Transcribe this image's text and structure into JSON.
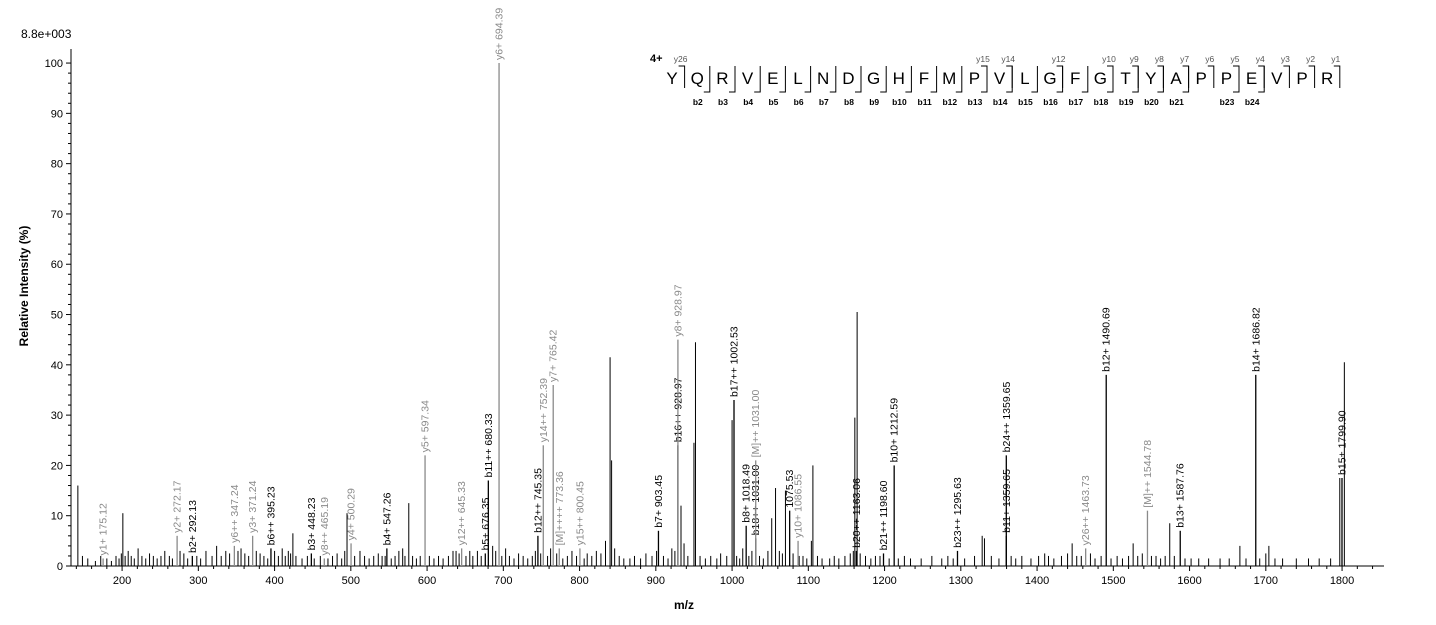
{
  "chart_data": {
    "type": "bar",
    "max_intensity_label": "8.8e+003",
    "xlabel": "m/z",
    "ylabel": "Relative   Intensity (%)",
    "xlim": [
      133,
      1855
    ],
    "ylim": [
      0,
      102
    ],
    "x_ticks": [
      200,
      300,
      400,
      500,
      600,
      700,
      800,
      900,
      1000,
      1100,
      1200,
      1300,
      1400,
      1500,
      1600,
      1700,
      1800
    ],
    "y_ticks": [
      0,
      10,
      20,
      30,
      40,
      50,
      60,
      70,
      80,
      90,
      100
    ],
    "annotated_peaks": [
      {
        "mz": 175.12,
        "intensity": 1.5,
        "ion": "y",
        "label": "y1+ 175.12"
      },
      {
        "mz": 272.17,
        "intensity": 6,
        "ion": "y",
        "label": "y2+ 272.17"
      },
      {
        "mz": 292.13,
        "intensity": 2,
        "ion": "b",
        "label": "b2+ 292.13"
      },
      {
        "mz": 347.24,
        "intensity": 4,
        "ion": "y",
        "label": "y6++ 347.24"
      },
      {
        "mz": 371.24,
        "intensity": 6,
        "ion": "y",
        "label": "y3+ 371.24"
      },
      {
        "mz": 395.23,
        "intensity": 3.5,
        "ion": "b",
        "label": "b6++ 395.23"
      },
      {
        "mz": 448.23,
        "intensity": 2.5,
        "ion": "b",
        "label": "b3+ 448.23"
      },
      {
        "mz": 465.19,
        "intensity": 1.5,
        "ion": "y",
        "label": "y8++ 465.19"
      },
      {
        "mz": 500.29,
        "intensity": 4.5,
        "ion": "y",
        "label": "y4+ 500.29"
      },
      {
        "mz": 547.26,
        "intensity": 3.5,
        "ion": "b",
        "label": "b4+ 547.26"
      },
      {
        "mz": 597.34,
        "intensity": 22,
        "ion": "y",
        "label": "y5+ 597.34"
      },
      {
        "mz": 645.33,
        "intensity": 3.5,
        "ion": "y",
        "label": "y12++ 645.33"
      },
      {
        "mz": 676.35,
        "intensity": 2.5,
        "ion": "b",
        "label": "b5+ 676.35"
      },
      {
        "mz": 680.33,
        "intensity": 17,
        "ion": "b",
        "label": "b11++ 680.33"
      },
      {
        "mz": 694.39,
        "intensity": 100,
        "ion": "y",
        "label": "y6+ 694.39"
      },
      {
        "mz": 745.35,
        "intensity": 6,
        "ion": "b",
        "label": "b12++ 745.35"
      },
      {
        "mz": 752.39,
        "intensity": 24,
        "ion": "y",
        "label": "y14++ 752.39"
      },
      {
        "mz": 765.42,
        "intensity": 36,
        "ion": "y",
        "label": "y7+ 765.42"
      },
      {
        "mz": 773.36,
        "intensity": 3.5,
        "ion": "y",
        "label": "[M]++++ 773.36"
      },
      {
        "mz": 800.45,
        "intensity": 3.5,
        "ion": "y",
        "label": "y15++ 800.45"
      },
      {
        "mz": 903.45,
        "intensity": 7,
        "ion": "b",
        "label": "b7+ 903.45"
      },
      {
        "mz": 928.97,
        "intensity": 24,
        "ion": "b",
        "label": "b16++ 928.97"
      },
      {
        "mz": 928.97,
        "intensity": 45,
        "ion": "y",
        "label": "y8+ 928.97"
      },
      {
        "mz": 1002.53,
        "intensity": 33,
        "ion": "b",
        "label": "b17++ 1002.53"
      },
      {
        "mz": 1018.49,
        "intensity": 8,
        "ion": "b",
        "label": "b8+ 1018.49"
      },
      {
        "mz": 1031.0,
        "intensity": 5.5,
        "ion": "b",
        "label": "b18++ 1031.00"
      },
      {
        "mz": 1031.0,
        "intensity": 21,
        "ion": "y",
        "label": "[M]++ 1031.00"
      },
      {
        "mz": 1075.53,
        "intensity": 11,
        "ion": "b",
        "label": "1075.53"
      },
      {
        "mz": 1086.55,
        "intensity": 5,
        "ion": "y",
        "label": "y10+ 1086.55"
      },
      {
        "mz": 1163.06,
        "intensity": 3,
        "ion": "b",
        "label": "b20++ 1163.06"
      },
      {
        "mz": 1198.6,
        "intensity": 2.5,
        "ion": "b",
        "label": "b21++ 1198.60"
      },
      {
        "mz": 1212.59,
        "intensity": 20,
        "ion": "b",
        "label": "b10+ 1212.59"
      },
      {
        "mz": 1295.63,
        "intensity": 3,
        "ion": "b",
        "label": "b23++ 1295.63"
      },
      {
        "mz": 1359.65,
        "intensity": 6,
        "ion": "b",
        "label": "b11+ 1359.65"
      },
      {
        "mz": 1359.65,
        "intensity": 22,
        "ion": "b",
        "label": "b24++ 1359.65"
      },
      {
        "mz": 1463.73,
        "intensity": 3.5,
        "ion": "y",
        "label": "y26++ 1463.73"
      },
      {
        "mz": 1490.69,
        "intensity": 38,
        "ion": "b",
        "label": "b12+ 1490.69"
      },
      {
        "mz": 1544.78,
        "intensity": 11,
        "ion": "y",
        "label": "[M]++ 1544.78"
      },
      {
        "mz": 1587.76,
        "intensity": 7,
        "ion": "b",
        "label": "b13+ 1587.76"
      },
      {
        "mz": 1686.82,
        "intensity": 38,
        "ion": "b",
        "label": "b14+ 1686.82"
      },
      {
        "mz": 1799.9,
        "intensity": 17.5,
        "ion": "b",
        "label": "b15+ 1799.90"
      }
    ],
    "unlabeled_peaks": [
      [
        142,
        16
      ],
      [
        148,
        2
      ],
      [
        155,
        1.5
      ],
      [
        165,
        1
      ],
      [
        172,
        2
      ],
      [
        180,
        1.5
      ],
      [
        186,
        1
      ],
      [
        192,
        2
      ],
      [
        196,
        1.5
      ],
      [
        199,
        2.5
      ],
      [
        201,
        10.5
      ],
      [
        204,
        2
      ],
      [
        208,
        3
      ],
      [
        212,
        2
      ],
      [
        216,
        1.5
      ],
      [
        221,
        3.5
      ],
      [
        226,
        2
      ],
      [
        231,
        1.5
      ],
      [
        236,
        2.5
      ],
      [
        241,
        2
      ],
      [
        246,
        1.5
      ],
      [
        251,
        2
      ],
      [
        256,
        3
      ],
      [
        262,
        2
      ],
      [
        266,
        1.5
      ],
      [
        276,
        3
      ],
      [
        281,
        2.5
      ],
      [
        286,
        1.5
      ],
      [
        298,
        2
      ],
      [
        303,
        1.5
      ],
      [
        310,
        3
      ],
      [
        318,
        2
      ],
      [
        324,
        4
      ],
      [
        330,
        2
      ],
      [
        336,
        3
      ],
      [
        341,
        2.5
      ],
      [
        352,
        3
      ],
      [
        356,
        3.5
      ],
      [
        361,
        2.5
      ],
      [
        366,
        2
      ],
      [
        376,
        3
      ],
      [
        381,
        2.5
      ],
      [
        386,
        2
      ],
      [
        391,
        1.5
      ],
      [
        400,
        3
      ],
      [
        405,
        2
      ],
      [
        410,
        3.5
      ],
      [
        414,
        2
      ],
      [
        418,
        3
      ],
      [
        421,
        2.5
      ],
      [
        424,
        6.5
      ],
      [
        428,
        2
      ],
      [
        436,
        1.5
      ],
      [
        443,
        2
      ],
      [
        452,
        1.5
      ],
      [
        460,
        2
      ],
      [
        470,
        1.5
      ],
      [
        476,
        2
      ],
      [
        482,
        2.5
      ],
      [
        488,
        1.5
      ],
      [
        492,
        3
      ],
      [
        495,
        10.5
      ],
      [
        505,
        2
      ],
      [
        512,
        3
      ],
      [
        518,
        2
      ],
      [
        524,
        1.5
      ],
      [
        530,
        2
      ],
      [
        536,
        2.5
      ],
      [
        541,
        2
      ],
      [
        545,
        2
      ],
      [
        553,
        1.5
      ],
      [
        558,
        2
      ],
      [
        563,
        3
      ],
      [
        568,
        3.5
      ],
      [
        571,
        2
      ],
      [
        576,
        12.5
      ],
      [
        581,
        2
      ],
      [
        586,
        1.5
      ],
      [
        591,
        2
      ],
      [
        603,
        2
      ],
      [
        609,
        1.5
      ],
      [
        615,
        2
      ],
      [
        621,
        1.5
      ],
      [
        628,
        2
      ],
      [
        634,
        3
      ],
      [
        638,
        3
      ],
      [
        642,
        2.5
      ],
      [
        651,
        2
      ],
      [
        656,
        3
      ],
      [
        660,
        2
      ],
      [
        666,
        3
      ],
      [
        671,
        2
      ],
      [
        686,
        4
      ],
      [
        690,
        3
      ],
      [
        698,
        2
      ],
      [
        703,
        3.5
      ],
      [
        708,
        2
      ],
      [
        714,
        1.5
      ],
      [
        720,
        2.5
      ],
      [
        726,
        2
      ],
      [
        732,
        1.5
      ],
      [
        738,
        2
      ],
      [
        742,
        3
      ],
      [
        749,
        2.5
      ],
      [
        758,
        2
      ],
      [
        762,
        3.5
      ],
      [
        770,
        2.5
      ],
      [
        778,
        1.5
      ],
      [
        784,
        2
      ],
      [
        790,
        3
      ],
      [
        796,
        2
      ],
      [
        806,
        1.5
      ],
      [
        810,
        2.5
      ],
      [
        816,
        2
      ],
      [
        822,
        3
      ],
      [
        828,
        2.5
      ],
      [
        834,
        5
      ],
      [
        840,
        41.5
      ],
      [
        842,
        21
      ],
      [
        846,
        3.5
      ],
      [
        852,
        2
      ],
      [
        858,
        1.5
      ],
      [
        866,
        1.5
      ],
      [
        872,
        2
      ],
      [
        880,
        1.5
      ],
      [
        887,
        2.5
      ],
      [
        895,
        2
      ],
      [
        901,
        3
      ],
      [
        910,
        2
      ],
      [
        916,
        1.5
      ],
      [
        921,
        3.5
      ],
      [
        925,
        3
      ],
      [
        933,
        12
      ],
      [
        937,
        4.5
      ],
      [
        942,
        2
      ],
      [
        950,
        24.5
      ],
      [
        952,
        44.5
      ],
      [
        958,
        2
      ],
      [
        965,
        1.5
      ],
      [
        972,
        2
      ],
      [
        980,
        1.5
      ],
      [
        985,
        2.5
      ],
      [
        993,
        2
      ],
      [
        1000,
        29
      ],
      [
        1006,
        2
      ],
      [
        1010,
        1.5
      ],
      [
        1014,
        3.5
      ],
      [
        1022,
        2
      ],
      [
        1026,
        3
      ],
      [
        1036,
        2
      ],
      [
        1041,
        1.5
      ],
      [
        1047,
        3
      ],
      [
        1052,
        9.5
      ],
      [
        1057,
        15.5
      ],
      [
        1062,
        3
      ],
      [
        1066,
        2.5
      ],
      [
        1070,
        15
      ],
      [
        1080,
        2.5
      ],
      [
        1088,
        2
      ],
      [
        1093,
        2
      ],
      [
        1098,
        1.5
      ],
      [
        1104,
        5
      ],
      [
        1106,
        20
      ],
      [
        1112,
        2
      ],
      [
        1118,
        1.5
      ],
      [
        1128,
        1.5
      ],
      [
        1134,
        2
      ],
      [
        1140,
        1.5
      ],
      [
        1148,
        2
      ],
      [
        1155,
        2.5
      ],
      [
        1159,
        3
      ],
      [
        1161,
        29.5
      ],
      [
        1164,
        50.5
      ],
      [
        1168,
        2.5
      ],
      [
        1175,
        2
      ],
      [
        1182,
        1.5
      ],
      [
        1188,
        2
      ],
      [
        1194,
        2
      ],
      [
        1206,
        1.5
      ],
      [
        1218,
        1.5
      ],
      [
        1226,
        2
      ],
      [
        1234,
        1.5
      ],
      [
        1248,
        1.5
      ],
      [
        1262,
        2
      ],
      [
        1275,
        1.5
      ],
      [
        1283,
        2
      ],
      [
        1290,
        1.5
      ],
      [
        1305,
        1.5
      ],
      [
        1318,
        2
      ],
      [
        1328,
        6
      ],
      [
        1331,
        5.5
      ],
      [
        1340,
        2
      ],
      [
        1350,
        1.5
      ],
      [
        1366,
        2
      ],
      [
        1372,
        1.5
      ],
      [
        1380,
        2
      ],
      [
        1392,
        1.5
      ],
      [
        1402,
        2
      ],
      [
        1410,
        2.5
      ],
      [
        1415,
        2
      ],
      [
        1422,
        1.5
      ],
      [
        1432,
        2
      ],
      [
        1440,
        2.5
      ],
      [
        1446,
        4.5
      ],
      [
        1452,
        2
      ],
      [
        1458,
        2
      ],
      [
        1470,
        2.5
      ],
      [
        1476,
        1.5
      ],
      [
        1484,
        2
      ],
      [
        1497,
        1.5
      ],
      [
        1505,
        2
      ],
      [
        1512,
        1.5
      ],
      [
        1520,
        2
      ],
      [
        1526,
        4.5
      ],
      [
        1532,
        2
      ],
      [
        1538,
        2.5
      ],
      [
        1550,
        2
      ],
      [
        1556,
        2
      ],
      [
        1562,
        1.5
      ],
      [
        1568,
        2
      ],
      [
        1574,
        8.5
      ],
      [
        1580,
        2
      ],
      [
        1594,
        1.5
      ],
      [
        1602,
        1.5
      ],
      [
        1612,
        1.5
      ],
      [
        1625,
        1.5
      ],
      [
        1640,
        1.5
      ],
      [
        1652,
        1.5
      ],
      [
        1666,
        4
      ],
      [
        1674,
        1.5
      ],
      [
        1692,
        1.5
      ],
      [
        1700,
        2.5
      ],
      [
        1704,
        4
      ],
      [
        1712,
        1.5
      ],
      [
        1722,
        1.5
      ],
      [
        1740,
        1.5
      ],
      [
        1756,
        1.5
      ],
      [
        1770,
        1.5
      ],
      [
        1785,
        1.5
      ],
      [
        1797,
        17.5
      ],
      [
        1803,
        40.5
      ]
    ],
    "sequence": {
      "charge_label": "4+",
      "residues": [
        "Y",
        "Q",
        "R",
        "V",
        "E",
        "L",
        "N",
        "D",
        "G",
        "H",
        "F",
        "M",
        "P",
        "V",
        "L",
        "G",
        "F",
        "G",
        "T",
        "Y",
        "A",
        "P",
        "P",
        "E",
        "V",
        "P",
        "R"
      ],
      "y_ions": [
        {
          "after": 1,
          "label": "y26"
        },
        {
          "after": 13,
          "label": "y15"
        },
        {
          "after": 14,
          "label": "y14"
        },
        {
          "after": 16,
          "label": "y12"
        },
        {
          "after": 18,
          "label": "y10"
        },
        {
          "after": 19,
          "label": "y9"
        },
        {
          "after": 20,
          "label": "y8"
        },
        {
          "after": 21,
          "label": "y7"
        },
        {
          "after": 22,
          "label": "y6"
        },
        {
          "after": 23,
          "label": "y5"
        },
        {
          "after": 24,
          "label": "y4"
        },
        {
          "after": 25,
          "label": "y3"
        },
        {
          "after": 26,
          "label": "y2"
        },
        {
          "after": 27,
          "label": "y1"
        }
      ],
      "b_ions": [
        {
          "after": 2,
          "label": "b2"
        },
        {
          "after": 3,
          "label": "b3"
        },
        {
          "after": 4,
          "label": "b4"
        },
        {
          "after": 5,
          "label": "b5"
        },
        {
          "after": 6,
          "label": "b6"
        },
        {
          "after": 7,
          "label": "b7"
        },
        {
          "after": 8,
          "label": "b8"
        },
        {
          "after": 9,
          "label": "b9"
        },
        {
          "after": 10,
          "label": "b10"
        },
        {
          "after": 11,
          "label": "b11"
        },
        {
          "after": 12,
          "label": "b12"
        },
        {
          "after": 13,
          "label": "b13"
        },
        {
          "after": 14,
          "label": "b14"
        },
        {
          "after": 15,
          "label": "b15"
        },
        {
          "after": 16,
          "label": "b16"
        },
        {
          "after": 17,
          "label": "b17"
        },
        {
          "after": 18,
          "label": "b18"
        },
        {
          "after": 19,
          "label": "b19"
        },
        {
          "after": 20,
          "label": "b20"
        },
        {
          "after": 21,
          "label": "b21"
        },
        {
          "after": 23,
          "label": "b23"
        },
        {
          "after": 24,
          "label": "b24"
        }
      ]
    },
    "colors": {
      "b_ion": "#000000",
      "y_ion": "#8a8a8a",
      "background_peak": "#000000"
    }
  }
}
